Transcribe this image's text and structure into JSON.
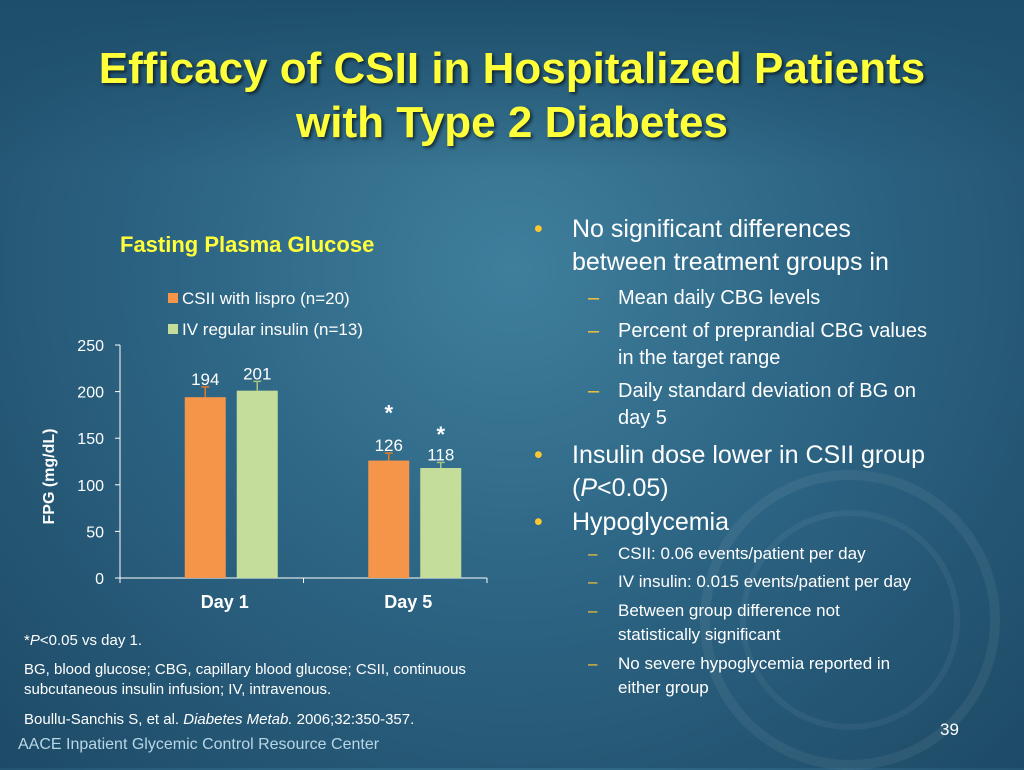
{
  "slide": {
    "title_line1": "Efficacy of CSII in Hospitalized Patients",
    "title_line2": "with Type 2 Diabetes",
    "page_number": "39",
    "footer": "AACE Inpatient Glycemic Control Resource Center"
  },
  "colors": {
    "csii": "#f5954a",
    "iv": "#c5dd9a",
    "title": "#ffff3a",
    "bullet": "#ffc830"
  },
  "chart_data": {
    "type": "bar",
    "title": "Fasting Plasma Glucose",
    "ylabel": "FPG (mg/dL)",
    "xlabel": "",
    "categories": [
      "Day 1",
      "Day 5"
    ],
    "ylim": [
      0,
      250
    ],
    "yticks": [
      "0",
      "50",
      "100",
      "150",
      "200",
      "250"
    ],
    "series": [
      {
        "name": "CSII with lispro (n=20)",
        "values": [
          194,
          126
        ],
        "errors": [
          11,
          8
        ]
      },
      {
        "name": "IV regular insulin (n=13)",
        "values": [
          201,
          118
        ],
        "errors": [
          10,
          6
        ]
      }
    ],
    "data_labels": [
      [
        "194",
        "126"
      ],
      [
        "201",
        "118"
      ]
    ],
    "annotations": [
      "*",
      "*"
    ],
    "legend_position": "top"
  },
  "bullets": [
    {
      "text_line1": "No significant differences",
      "text_line2": "between treatment groups in"
    },
    {
      "text": "Mean daily CBG levels"
    },
    {
      "text_line1": "Percent of preprandial CBG values",
      "text_line2": "in the target range"
    },
    {
      "text_line1": "Daily standard deviation of BG on",
      "text_line2": "day 5"
    },
    {
      "text_line1": "Insulin dose lower in CSII group",
      "p_open": "(",
      "p_italic": "P",
      "p_rest": "<0.05)"
    },
    {
      "text": "Hypoglycemia"
    },
    {
      "text": "CSII: 0.06 events/patient per day"
    },
    {
      "text": "IV insulin: 0.015 events/patient per day"
    },
    {
      "text_line1": "Between group difference not",
      "text_line2": "statistically significant"
    },
    {
      "text_line1": "No severe hypoglycemia reported in",
      "text_line2": "either group"
    }
  ],
  "bullet_symbol": "•",
  "dash_symbol": "–",
  "footnotes": {
    "sig_star": "*",
    "sig_p": "P",
    "sig_rest": "<0.05 vs day 1.",
    "abbrev_line1": "BG, blood glucose; CBG, capillary blood glucose; CSII, continuous",
    "abbrev_line2": "subcutaneous insulin infusion; IV, intravenous.",
    "ref_authors": "Boullu-Sanchis S, et al. ",
    "ref_journal": "Diabetes Metab.",
    "ref_rest": " 2006;32:350-357."
  }
}
